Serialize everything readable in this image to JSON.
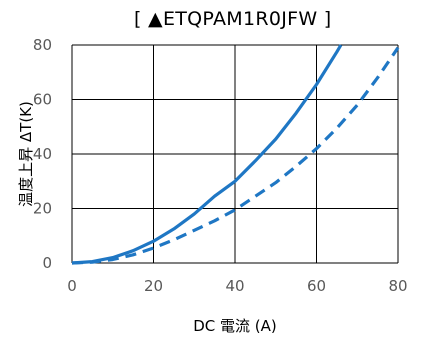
{
  "chart_data": {
    "type": "line",
    "title": "[ ▲ETQPAM1R0JFW ]",
    "xlabel": "DC 電流 (A)",
    "ylabel": "温度上昇 ΔT(K)",
    "xlim": [
      0,
      80
    ],
    "ylim": [
      0,
      80
    ],
    "xticks": [
      0,
      20,
      40,
      60,
      80
    ],
    "yticks": [
      0,
      20,
      40,
      60,
      80
    ],
    "xtick_labels": [
      "0",
      "20",
      "40",
      "60",
      "80"
    ],
    "ytick_labels": [
      "0",
      "20",
      "40",
      "60",
      "80"
    ],
    "grid": true,
    "legend": "none",
    "series": [
      {
        "style": "solid",
        "color": "#1f77c4",
        "x": [
          0,
          5,
          10,
          15,
          20,
          25,
          30,
          35,
          40,
          45,
          50,
          55,
          60,
          65,
          66
        ],
        "y": [
          0,
          0.5,
          2,
          4.5,
          8,
          12.5,
          18,
          24.5,
          30,
          37.5,
          45.5,
          55,
          65.5,
          77.5,
          80
        ]
      },
      {
        "style": "dashed",
        "color": "#1f77c4",
        "x": [
          0,
          5,
          10,
          15,
          20,
          25,
          30,
          35,
          40,
          45,
          50,
          55,
          60,
          65,
          70,
          75,
          80
        ],
        "y": [
          0,
          0.3,
          1.3,
          3,
          5.5,
          8.5,
          12,
          15.5,
          19.5,
          24.5,
          29.5,
          35.5,
          42,
          49.5,
          58,
          68,
          79
        ]
      }
    ]
  }
}
